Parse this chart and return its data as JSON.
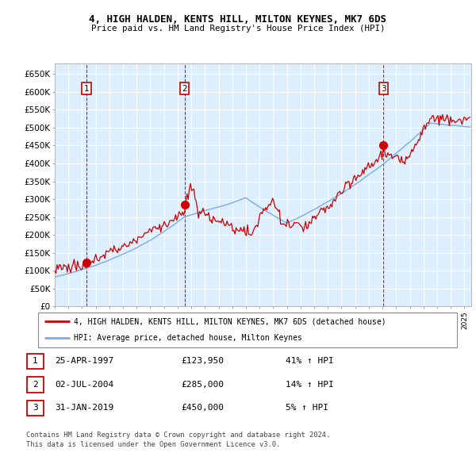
{
  "title1": "4, HIGH HALDEN, KENTS HILL, MILTON KEYNES, MK7 6DS",
  "title2": "Price paid vs. HM Land Registry's House Price Index (HPI)",
  "ylabel_ticks": [
    "£0",
    "£50K",
    "£100K",
    "£150K",
    "£200K",
    "£250K",
    "£300K",
    "£350K",
    "£400K",
    "£450K",
    "£500K",
    "£550K",
    "£600K",
    "£650K"
  ],
  "ytick_values": [
    0,
    50000,
    100000,
    150000,
    200000,
    250000,
    300000,
    350000,
    400000,
    450000,
    500000,
    550000,
    600000,
    650000
  ],
  "xlim_start": 1995.0,
  "xlim_end": 2025.5,
  "ylim_min": 0,
  "ylim_max": 680000,
  "sale_dates": [
    1997.32,
    2004.5,
    2019.08
  ],
  "sale_prices": [
    123950,
    285000,
    450000
  ],
  "sale_labels": [
    "1",
    "2",
    "3"
  ],
  "sale_pct": [
    "41% ↑ HPI",
    "14% ↑ HPI",
    "5% ↑ HPI"
  ],
  "sale_date_str": [
    "25-APR-1997",
    "02-JUL-2004",
    "31-JAN-2019"
  ],
  "vline_color": "#cc0000",
  "sale_dot_color": "#cc0000",
  "hpi_line_color": "#7aaddd",
  "price_line_color": "#cc0000",
  "background_color": "#ddeeff",
  "legend_label1": "4, HIGH HALDEN, KENTS HILL, MILTON KEYNES, MK7 6DS (detached house)",
  "legend_label2": "HPI: Average price, detached house, Milton Keynes",
  "footer1": "Contains HM Land Registry data © Crown copyright and database right 2024.",
  "footer2": "This data is licensed under the Open Government Licence v3.0."
}
